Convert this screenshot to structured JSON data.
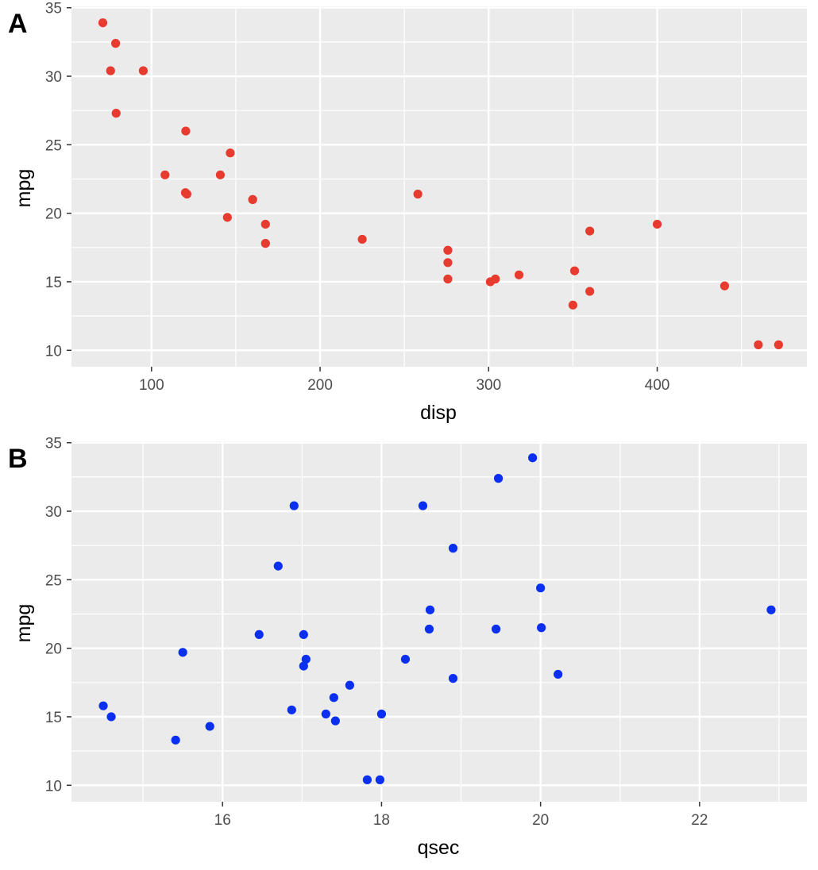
{
  "chart_data": [
    {
      "type": "scatter",
      "panel_label": "A",
      "xlabel": "disp",
      "ylabel": "mpg",
      "xticks": [
        "100",
        "200",
        "300",
        "400"
      ],
      "yticks": [
        "10",
        "15",
        "20",
        "25",
        "30",
        "35"
      ],
      "xlim": [
        52.5,
        488.8
      ],
      "ylim": [
        8.8,
        35.1
      ],
      "point_color": "#e63b2e",
      "background": "#ebebeb",
      "grid": true,
      "series": [
        {
          "x": [
            160,
            160,
            108,
            258,
            360,
            225,
            360,
            146.7,
            140.8,
            167.6,
            167.6,
            275.8,
            275.8,
            275.8,
            472,
            460,
            440,
            78.7,
            75.7,
            71.1,
            120.1,
            318,
            304,
            350,
            400,
            79,
            120.3,
            95.1,
            351,
            145,
            301,
            121
          ],
          "y": [
            21,
            21,
            22.8,
            21.4,
            18.7,
            18.1,
            14.3,
            24.4,
            22.8,
            19.2,
            17.8,
            16.4,
            17.3,
            15.2,
            10.4,
            10.4,
            14.7,
            32.4,
            30.4,
            33.9,
            21.5,
            15.5,
            15.2,
            13.3,
            19.2,
            27.3,
            26,
            30.4,
            15.8,
            19.7,
            15,
            21.4
          ]
        }
      ]
    },
    {
      "type": "scatter",
      "panel_label": "B",
      "xlabel": "qsec",
      "ylabel": "mpg",
      "xticks": [
        "16",
        "18",
        "20",
        "22"
      ],
      "yticks": [
        "10",
        "15",
        "20",
        "25",
        "30",
        "35"
      ],
      "xlim": [
        14.1,
        23.35
      ],
      "ylim": [
        8.8,
        35.1
      ],
      "point_color": "#0a2ff0",
      "background": "#ebebeb",
      "grid": true,
      "series": [
        {
          "x": [
            16.46,
            17.02,
            18.61,
            19.44,
            17.02,
            20.22,
            15.84,
            20,
            22.9,
            18.3,
            18.9,
            17.4,
            17.6,
            18,
            17.98,
            17.82,
            17.42,
            19.47,
            18.52,
            19.9,
            20.01,
            16.87,
            17.3,
            15.41,
            17.05,
            18.9,
            16.7,
            16.9,
            14.5,
            15.5,
            14.6,
            18.6
          ],
          "y": [
            21,
            21,
            22.8,
            21.4,
            18.7,
            18.1,
            14.3,
            24.4,
            22.8,
            19.2,
            17.8,
            16.4,
            17.3,
            15.2,
            10.4,
            10.4,
            14.7,
            32.4,
            30.4,
            33.9,
            21.5,
            15.5,
            15.2,
            13.3,
            19.2,
            27.3,
            26,
            30.4,
            15.8,
            19.7,
            15,
            21.4
          ]
        }
      ]
    }
  ]
}
